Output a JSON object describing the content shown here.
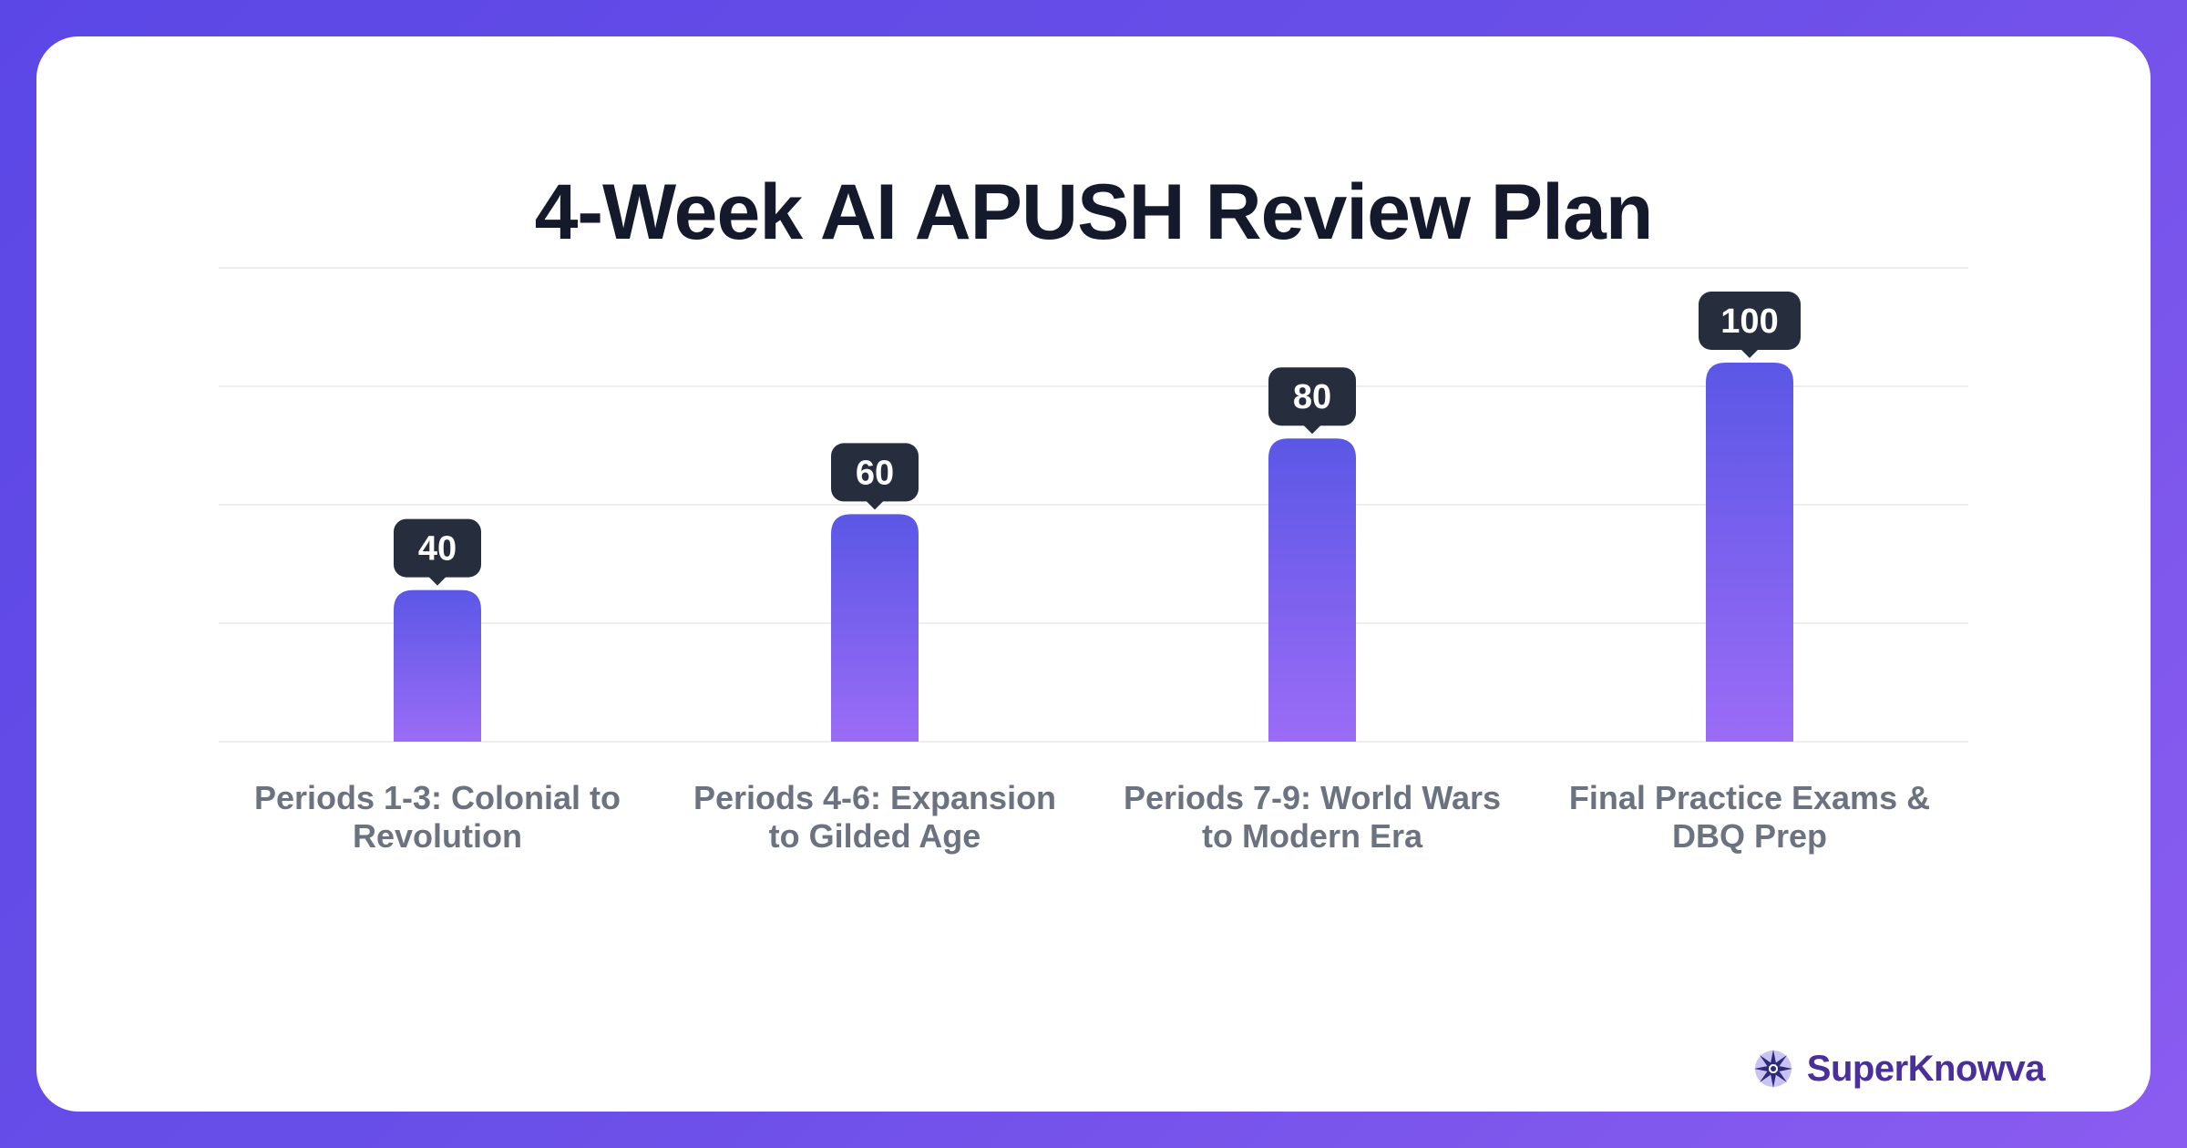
{
  "chart_data": {
    "type": "bar",
    "title": "4-Week AI APUSH Review Plan",
    "categories": [
      [
        "Periods 1-3: Colonial to",
        "Revolution"
      ],
      [
        "Periods 4-6: Expansion",
        "to Gilded Age"
      ],
      [
        "Periods 7-9: World Wars",
        "to Modern Era"
      ],
      [
        "Final Practice Exams &",
        "DBQ Prep"
      ]
    ],
    "values": [
      40,
      60,
      80,
      100
    ],
    "ylim": [
      0,
      125
    ],
    "grid": true,
    "colors": {
      "bar_top": "#5b57e6",
      "bar_bottom": "#9b6cf6",
      "label_bg": "#262d3d",
      "grid": "#eceef2"
    }
  },
  "brand": {
    "name": "SuperKnowva",
    "icon": "starburst-logo-icon"
  }
}
